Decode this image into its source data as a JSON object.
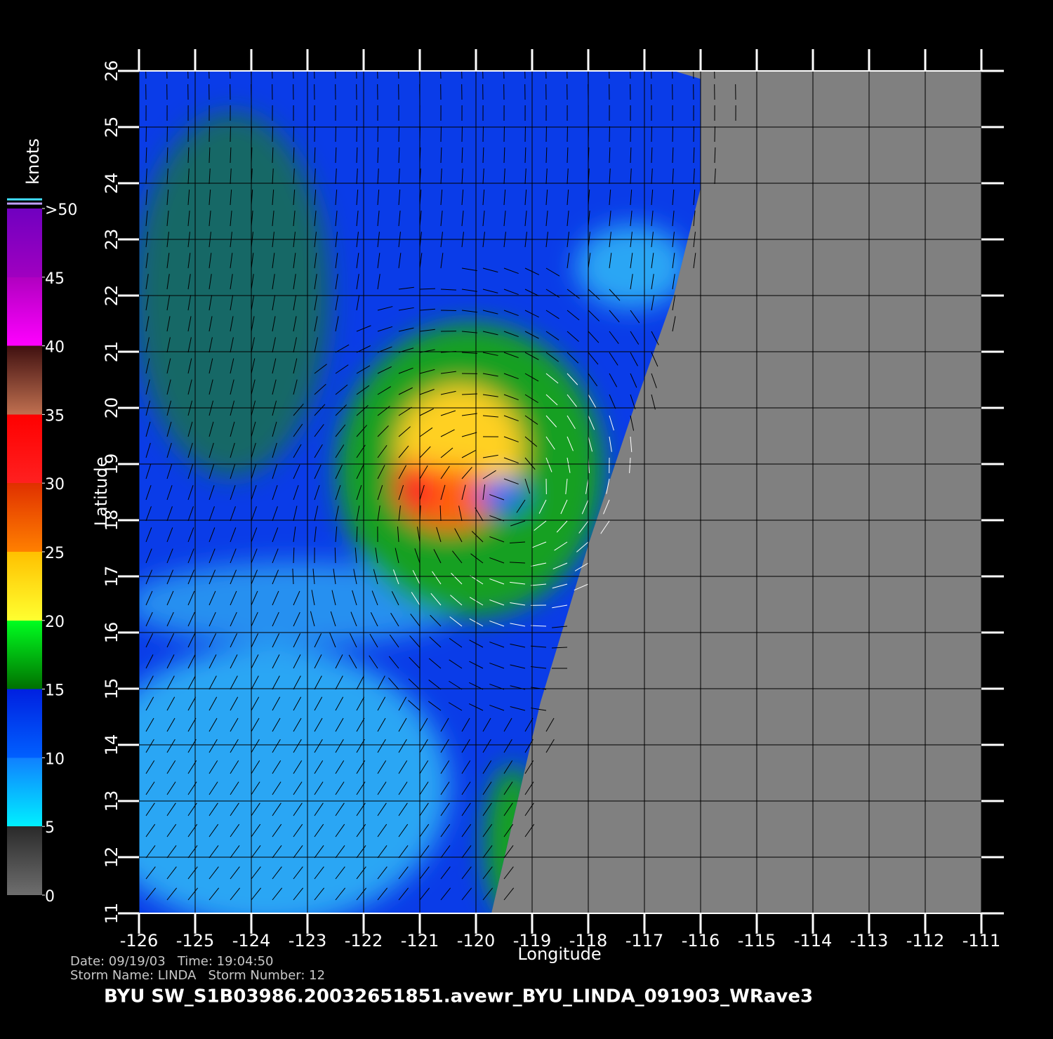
{
  "map": {
    "xlabel": "Longitude",
    "ylabel": "Latitude",
    "xlim": [
      -126,
      -111
    ],
    "xticks": [
      -126,
      -125,
      -124,
      -123,
      -122,
      -121,
      -120,
      -119,
      -118,
      -117,
      -116,
      -115,
      -114,
      -113,
      -112,
      -111
    ],
    "ylim": [
      11,
      26
    ],
    "yticks": [
      11,
      12,
      13,
      14,
      15,
      16,
      17,
      18,
      19,
      20,
      21,
      22,
      23,
      24,
      25,
      26
    ],
    "grid": true
  },
  "colorbar": {
    "title": "knots",
    "lim": [
      0,
      50
    ],
    "ticks": [
      0,
      5,
      10,
      15,
      20,
      25,
      30,
      35,
      40,
      45,
      {
        "value": 50,
        "label": ">50"
      }
    ]
  },
  "info": [
    "Date: 09/19/03   Time: 19:04:50",
    "Storm Name: LINDA   Storm Number: 12"
  ],
  "footer": "BYU  SW_S1B03986.20032651851.avewr_BYU_LINDA_091903_WRave3"
}
